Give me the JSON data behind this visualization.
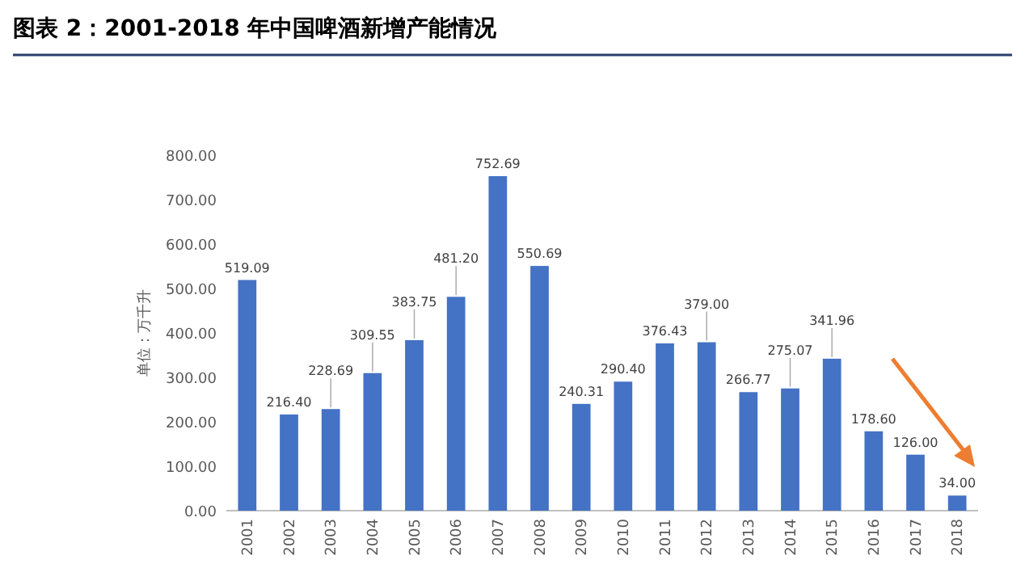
{
  "chart_data": {
    "type": "bar",
    "title": "图表 2：2001-2018 年中国啤酒新增产能情况",
    "ylabel": "单位：万千升",
    "categories": [
      "2001",
      "2002",
      "2003",
      "2004",
      "2005",
      "2006",
      "2007",
      "2008",
      "2009",
      "2010",
      "2011",
      "2012",
      "2013",
      "2014",
      "2015",
      "2016",
      "2017",
      "2018"
    ],
    "values": [
      519.09,
      216.4,
      228.69,
      309.55,
      383.75,
      481.2,
      752.69,
      550.69,
      240.31,
      290.4,
      376.43,
      379.0,
      266.77,
      275.07,
      341.96,
      178.6,
      126.0,
      34.0
    ],
    "color": "#4472c4",
    "value_labels": [
      "519.09",
      "216.40",
      "228.69",
      "309.55",
      "383.75",
      "481.20",
      "752.69",
      "550.69",
      "240.31",
      "290.40",
      "376.43",
      "379.00",
      "266.77",
      "275.07",
      "341.96",
      "178.60",
      "126.00",
      "34.00"
    ],
    "ylim": [
      0,
      800
    ],
    "yticks": [
      {
        "value": 0,
        "label": "0.00"
      },
      {
        "value": 100,
        "label": "100.00"
      },
      {
        "value": 200,
        "label": "200.00"
      },
      {
        "value": 300,
        "label": "300.00"
      },
      {
        "value": 400,
        "label": "400.00"
      },
      {
        "value": 500,
        "label": "500.00"
      },
      {
        "value": 600,
        "label": "600.00"
      },
      {
        "value": 700,
        "label": "700.00"
      },
      {
        "value": 800,
        "label": "800.00"
      }
    ]
  }
}
